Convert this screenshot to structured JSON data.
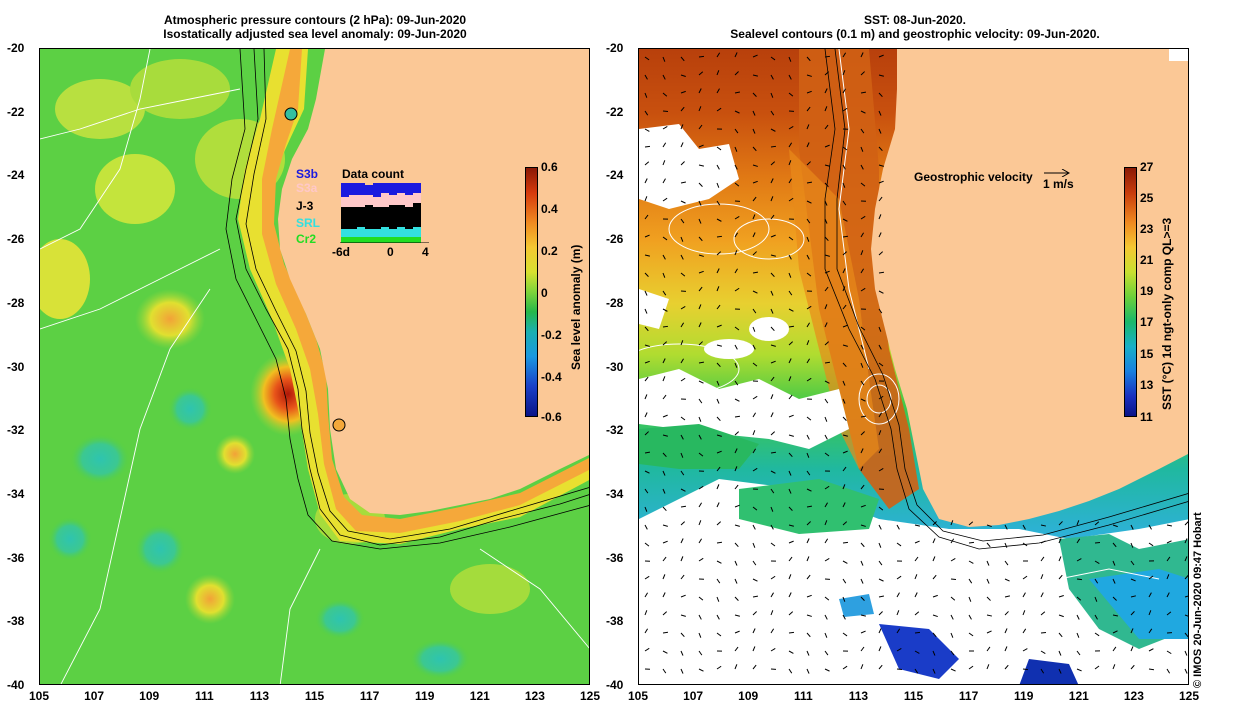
{
  "left_map": {
    "title_line1": "Atmospheric pressure contours (2 hPa): 09-Jun-2020",
    "title_line2": "Isostatically adjusted sea level anomaly: 09-Jun-2020",
    "x_ticks": [
      "105",
      "107",
      "109",
      "111",
      "113",
      "115",
      "117",
      "119",
      "121",
      "123",
      "125"
    ],
    "y_ticks": [
      "-20",
      "-22",
      "-24",
      "-26",
      "-28",
      "-30",
      "-32",
      "-34",
      "-36",
      "-38",
      "-40"
    ],
    "colorbar": {
      "label": "Sea level anomaly (m)",
      "ticks": [
        "0.6",
        "0.4",
        "0.2",
        "0",
        "-0.2",
        "-0.4",
        "-0.6"
      ]
    },
    "data_count": {
      "title": "Data count",
      "satellites": [
        {
          "label": "S3b",
          "color": "#1a1adf"
        },
        {
          "label": "S3a",
          "color": "#ffc8c8"
        },
        {
          "label": "J-3",
          "color": "#000000"
        },
        {
          "label": "SRL",
          "color": "#33e0e0"
        },
        {
          "label": "Cr2",
          "color": "#22dd22"
        }
      ],
      "x_ticks": [
        "-6d",
        "0",
        "4"
      ]
    }
  },
  "right_map": {
    "title_line1": "SST: 08-Jun-2020.",
    "title_line2": "Sealevel contours (0.1 m) and geostrophic velocity: 09-Jun-2020.",
    "x_ticks": [
      "105",
      "107",
      "109",
      "111",
      "113",
      "115",
      "117",
      "119",
      "121",
      "123",
      "125"
    ],
    "y_ticks": [
      "-20",
      "-22",
      "-24",
      "-26",
      "-28",
      "-30",
      "-32",
      "-34",
      "-36",
      "-38",
      "-40"
    ],
    "velocity_key": {
      "label": "Geostrophic velocity",
      "scale": "1 m/s"
    },
    "colorbar": {
      "label": "SST (°C) 1d ngt-only comp QL>=3",
      "ticks": [
        "27",
        "25",
        "23",
        "21",
        "19",
        "17",
        "15",
        "13",
        "11"
      ]
    }
  },
  "credit": "© IMOS 20-Jun-2020 09:47 Hobart",
  "colors": {
    "land": "#fbc896",
    "ocean_green": "#55d040",
    "coast_orange": "#f5a83a",
    "anomaly_red": "#c4300a"
  }
}
